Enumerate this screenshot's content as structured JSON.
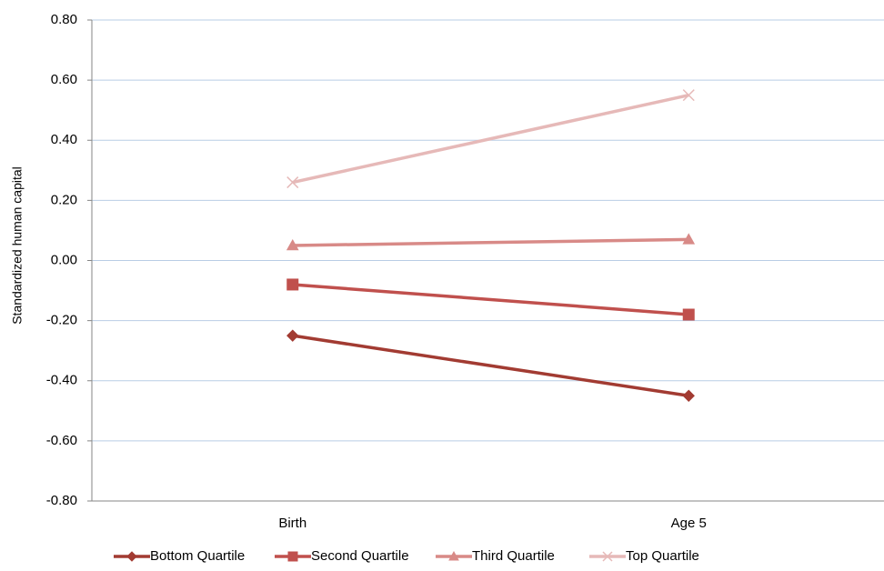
{
  "chart_data": {
    "type": "line",
    "y_label": "Standardized human capital",
    "categories": [
      "Birth",
      "Age 5"
    ],
    "series": [
      {
        "name": "Bottom Quartile",
        "color": "#a23b32",
        "marker": "diamond",
        "values": [
          -0.25,
          -0.45
        ]
      },
      {
        "name": "Second Quartile",
        "color": "#c0504d",
        "marker": "square",
        "values": [
          -0.08,
          -0.18
        ]
      },
      {
        "name": "Third Quartile",
        "color": "#d88a87",
        "marker": "triangle",
        "values": [
          0.05,
          0.07
        ]
      },
      {
        "name": "Top Quartile",
        "color": "#e6b9b8",
        "marker": "x",
        "values": [
          0.26,
          0.55
        ]
      }
    ],
    "ylim": [
      -0.8,
      0.8
    ],
    "yticks": [
      {
        "value": -0.8,
        "label": "-0.80"
      },
      {
        "value": -0.6,
        "label": "-0.60"
      },
      {
        "value": -0.4,
        "label": "-0.40"
      },
      {
        "value": -0.2,
        "label": "-0.20"
      },
      {
        "value": 0,
        "label": "0.00"
      },
      {
        "value": 0.2,
        "label": "0.20"
      },
      {
        "value": 0.4,
        "label": "0.40"
      },
      {
        "value": 0.6,
        "label": "0.60"
      },
      {
        "value": 0.8,
        "label": "0.80"
      }
    ],
    "grid": true,
    "legend": "bottom"
  }
}
